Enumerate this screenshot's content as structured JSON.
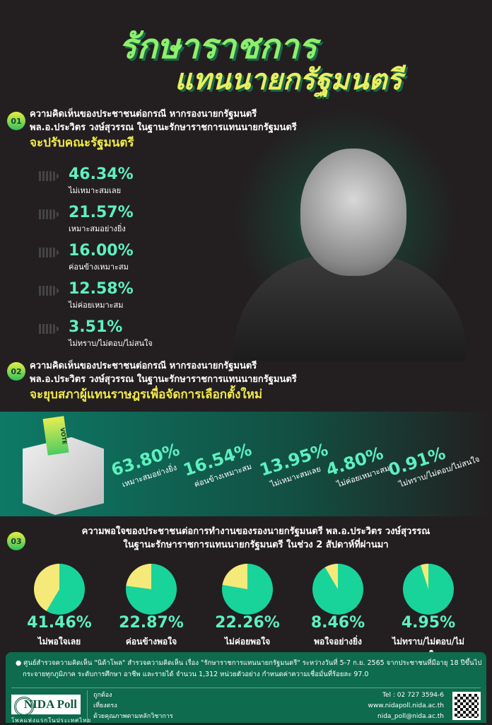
{
  "title": {
    "line1": "รักษาราชการ",
    "line2": "แทนนายกรัฐมนตรี"
  },
  "colors": {
    "background": "#231f20",
    "accent_green": "#5ef0c0",
    "highlight_yellow": "#f2e94a",
    "pie_green": "#18d49a",
    "pie_yellow": "#f5e97a",
    "footer": "#0e6b4d"
  },
  "q1": {
    "num": "01",
    "line1": "ความคิดเห็นของประชาชนต่อกรณี หากรองนายกรัฐมนตรี",
    "line2": "พล.อ.ประวิตร วงษ์สุวรรณ ในฐานะรักษาราชการแทนนายกรัฐมนตรี",
    "highlight": "จะปรับคณะรัฐมนตรี",
    "items": [
      {
        "pct": "46.34%",
        "label": "ไม่เหมาะสมเลย"
      },
      {
        "pct": "21.57%",
        "label": "เหมาะสมอย่างยิ่ง"
      },
      {
        "pct": "16.00%",
        "label": "ค่อนข้างเหมาะสม"
      },
      {
        "pct": "12.58%",
        "label": "ไม่ค่อยเหมาะสม"
      },
      {
        "pct": "3.51%",
        "label": "ไม่ทราบ/ไม่ตอบ/ไม่สนใจ"
      }
    ]
  },
  "q2": {
    "num": "02",
    "line1": "ความคิดเห็นของประชาชนต่อกรณี หากรองนายกรัฐมนตรี",
    "line2": "พล.อ.ประวิตร วงษ์สุวรรณ ในฐานะรักษาราชการแทนนายกรัฐมนตรี",
    "highlight": "จะยุบสภาผู้แทนราษฎรเพื่อจัดการเลือกตั้งใหม่",
    "vote_label": "VOTE",
    "items": [
      {
        "pct": "63.80%",
        "label": "เหมาะสมอย่างยิ่ง"
      },
      {
        "pct": "16.54%",
        "label": "ค่อนข้างเหมาะสม"
      },
      {
        "pct": "13.95%",
        "label": "ไม่เหมาะสมเลย"
      },
      {
        "pct": "4.80%",
        "label": "ไม่ค่อยเหมาะสม"
      },
      {
        "pct": "0.91%",
        "label": "ไม่ทราบ/ไม่ตอบ/ไม่สนใจ"
      }
    ]
  },
  "q3": {
    "num": "03",
    "line1": "ความพอใจของประชาชนต่อการทำงานของรองนายกรัฐมนตรี พล.อ.ประวิตร วงษ์สุวรรณ",
    "line2": "ในฐานะรักษาราชการแทนนายกรัฐมนตรี ในช่วง 2 สัปดาห์ที่ผ่านมา",
    "items": [
      {
        "pct": "41.46%",
        "value": 41.46,
        "label": "ไม่พอใจเลย"
      },
      {
        "pct": "22.87%",
        "value": 22.87,
        "label": "ค่อนข้างพอใจ"
      },
      {
        "pct": "22.26%",
        "value": 22.26,
        "label": "ไม่ค่อยพอใจ"
      },
      {
        "pct": "8.46%",
        "value": 8.46,
        "label": "พอใจอย่างยิ่ง"
      },
      {
        "pct": "4.95%",
        "value": 4.95,
        "label": "ไม่ทราบ/ไม่ตอบ/ไม่สนใจ"
      }
    ]
  },
  "footer": {
    "note1": "● ศูนย์สำรวจความคิดเห็น \"นิด้าโพล\" สำรวจความคิดเห็น เรื่อง \"รักษาราชการแทนนายกรัฐมนตรี\" ระหว่างวันที่ 5-7 ก.ย. 2565 จากประชาชนที่มีอายุ 18 ปีขึ้นไป",
    "note2": "กระจายทุกภูมิภาค ระดับการศึกษา อาชีพ และรายได้ จำนวน 1,312 หน่วยตัวอย่าง กำหนดค่าความเชื่อมั่นที่ร้อยละ 97.0",
    "logo": "NIDA Poll",
    "tagline": "โพลแห่งแรกในประเทศไทย",
    "values": [
      "ถูกต้อง",
      "เที่ยงตรง",
      "ด้วยคุณภาพตามหลักวิชาการ"
    ],
    "tel": "Tel : 02 727 3594-6",
    "web": "www.nidapoll.nida.ac.th",
    "email": "nida_poll@nida.ac.th"
  }
}
